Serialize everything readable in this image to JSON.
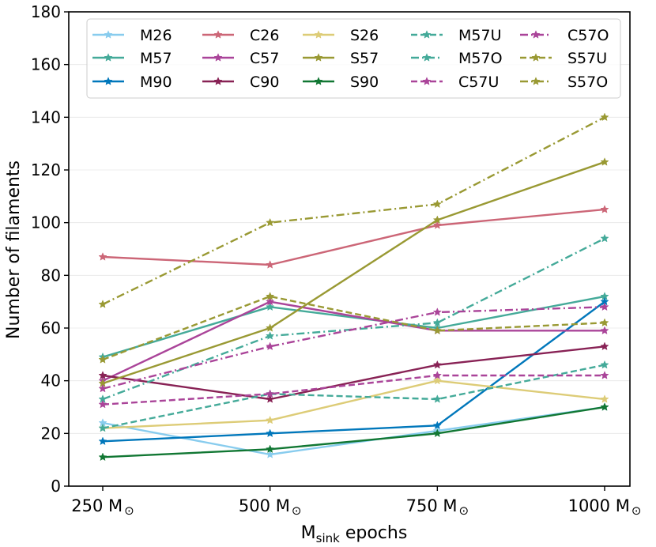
{
  "chart_data": {
    "type": "line",
    "title": "",
    "xlabel_main": "M",
    "xlabel_sub": "sink",
    "xlabel_rest": " epochs",
    "ylabel": "Number of filaments",
    "categories": [
      {
        "value": "250",
        "unit": "M",
        "sub": "⊙"
      },
      {
        "value": "500",
        "unit": "M",
        "sub": "⊙"
      },
      {
        "value": "750",
        "unit": "M",
        "sub": "⊙"
      },
      {
        "value": "1000",
        "unit": "M",
        "sub": "⊙"
      }
    ],
    "ylim": [
      0,
      180
    ],
    "yticks": [
      "0",
      "20",
      "40",
      "60",
      "80",
      "100",
      "120",
      "140",
      "160",
      "180"
    ],
    "grid": "horizontal-light",
    "legend_position": "top",
    "series": [
      {
        "name": "M26",
        "color": "#88CCEE",
        "dash": "solid",
        "values": [
          24,
          12,
          21,
          30
        ]
      },
      {
        "name": "M57",
        "color": "#44AA99",
        "dash": "solid",
        "values": [
          49,
          68,
          60,
          72
        ]
      },
      {
        "name": "M90",
        "color": "#0077BB",
        "dash": "solid",
        "values": [
          17,
          20,
          23,
          70
        ]
      },
      {
        "name": "C26",
        "color": "#CC6677",
        "dash": "solid",
        "values": [
          87,
          84,
          99,
          105
        ]
      },
      {
        "name": "C57",
        "color": "#AA4499",
        "dash": "solid",
        "values": [
          40,
          70,
          59,
          59
        ]
      },
      {
        "name": "C90",
        "color": "#882255",
        "dash": "solid",
        "values": [
          42,
          33,
          46,
          53
        ]
      },
      {
        "name": "S26",
        "color": "#DDCC77",
        "dash": "solid",
        "values": [
          22,
          25,
          40,
          33
        ]
      },
      {
        "name": "S57",
        "color": "#999933",
        "dash": "solid",
        "values": [
          39,
          60,
          101,
          123
        ]
      },
      {
        "name": "S90",
        "color": "#117733",
        "dash": "solid",
        "values": [
          11,
          14,
          20,
          30
        ]
      },
      {
        "name": "M57U",
        "color": "#44AA99",
        "dash": "dashed",
        "values": [
          22,
          35,
          33,
          46
        ]
      },
      {
        "name": "M57O",
        "color": "#44AA99",
        "dash": "dashdot",
        "values": [
          33,
          57,
          62,
          94
        ]
      },
      {
        "name": "C57U",
        "color": "#AA4499",
        "dash": "dashed",
        "values": [
          31,
          35,
          42,
          42
        ]
      },
      {
        "name": "C57O",
        "color": "#AA4499",
        "dash": "dashdot",
        "values": [
          37,
          53,
          66,
          68
        ]
      },
      {
        "name": "S57U",
        "color": "#999933",
        "dash": "dashed",
        "values": [
          48,
          72,
          59,
          62
        ]
      },
      {
        "name": "S57O",
        "color": "#999933",
        "dash": "dashdot",
        "values": [
          69,
          100,
          107,
          140
        ]
      }
    ]
  }
}
